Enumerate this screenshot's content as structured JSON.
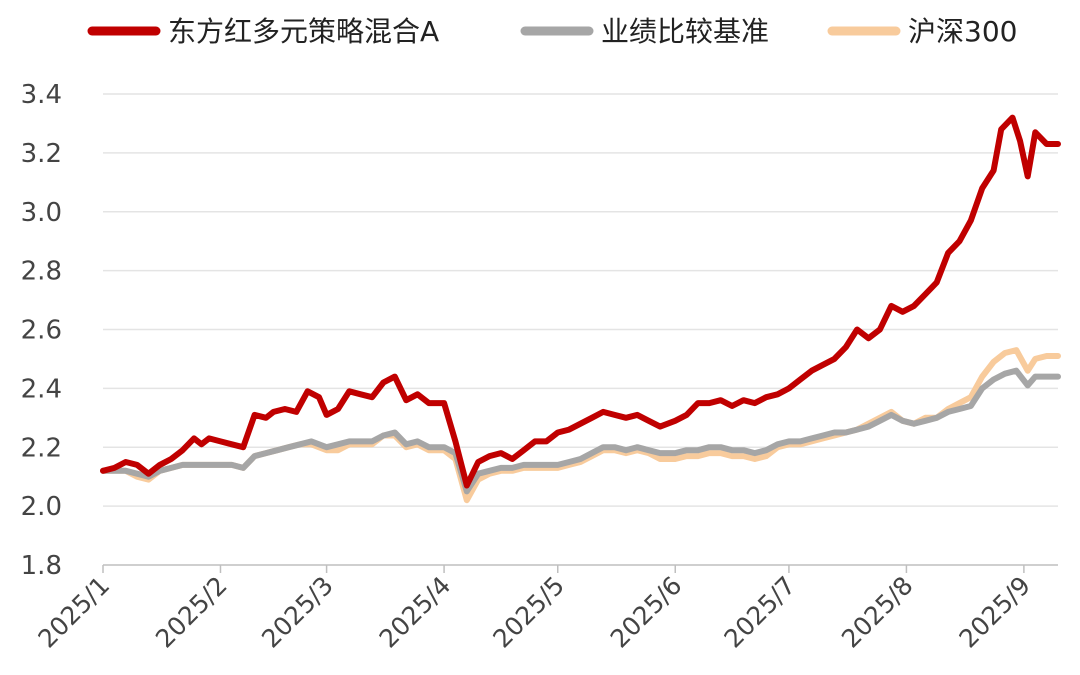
{
  "chart_data": {
    "type": "line",
    "title": "",
    "xlabel": "",
    "ylabel": "",
    "ylim": [
      1.8,
      3.4
    ],
    "yticks": [
      1.8,
      2.0,
      2.2,
      2.4,
      2.6,
      2.8,
      3.0,
      3.2,
      3.4
    ],
    "ytick_labels": [
      "1.8",
      "2.0",
      "2.2",
      "2.4",
      "2.6",
      "2.8",
      "3.0",
      "3.2",
      "3.4"
    ],
    "xlim": [
      "2025-01-01",
      "2025-09-10"
    ],
    "xticks": [
      "2025-01-01",
      "2025-02-01",
      "2025-03-01",
      "2025-04-01",
      "2025-05-01",
      "2025-06-01",
      "2025-07-01",
      "2025-08-01",
      "2025-09-01"
    ],
    "xtick_labels": [
      "2025/1",
      "2025/2",
      "2025/3",
      "2025/4",
      "2025/5",
      "2025/6",
      "2025/7",
      "2025/8",
      "2025/9"
    ],
    "grid": "horizontal",
    "legend_position": "top",
    "series": [
      {
        "name": "东方红多元策略混合A",
        "color": "#c00000",
        "points": [
          [
            "2025-01-01",
            2.12
          ],
          [
            "2025-01-04",
            2.13
          ],
          [
            "2025-01-07",
            2.15
          ],
          [
            "2025-01-10",
            2.14
          ],
          [
            "2025-01-13",
            2.11
          ],
          [
            "2025-01-16",
            2.14
          ],
          [
            "2025-01-19",
            2.16
          ],
          [
            "2025-01-22",
            2.19
          ],
          [
            "2025-01-25",
            2.23
          ],
          [
            "2025-01-27",
            2.21
          ],
          [
            "2025-01-29",
            2.23
          ],
          [
            "2025-02-01",
            2.22
          ],
          [
            "2025-02-04",
            2.21
          ],
          [
            "2025-02-07",
            2.2
          ],
          [
            "2025-02-10",
            2.31
          ],
          [
            "2025-02-13",
            2.3
          ],
          [
            "2025-02-15",
            2.32
          ],
          [
            "2025-02-18",
            2.33
          ],
          [
            "2025-02-21",
            2.32
          ],
          [
            "2025-02-24",
            2.39
          ],
          [
            "2025-02-27",
            2.37
          ],
          [
            "2025-03-01",
            2.31
          ],
          [
            "2025-03-04",
            2.33
          ],
          [
            "2025-03-07",
            2.39
          ],
          [
            "2025-03-10",
            2.38
          ],
          [
            "2025-03-13",
            2.37
          ],
          [
            "2025-03-16",
            2.42
          ],
          [
            "2025-03-19",
            2.44
          ],
          [
            "2025-03-22",
            2.36
          ],
          [
            "2025-03-25",
            2.38
          ],
          [
            "2025-03-28",
            2.35
          ],
          [
            "2025-04-01",
            2.35
          ],
          [
            "2025-04-04",
            2.22
          ],
          [
            "2025-04-07",
            2.07
          ],
          [
            "2025-04-10",
            2.15
          ],
          [
            "2025-04-13",
            2.17
          ],
          [
            "2025-04-16",
            2.18
          ],
          [
            "2025-04-19",
            2.16
          ],
          [
            "2025-04-22",
            2.19
          ],
          [
            "2025-04-25",
            2.22
          ],
          [
            "2025-04-28",
            2.22
          ],
          [
            "2025-05-01",
            2.25
          ],
          [
            "2025-05-04",
            2.26
          ],
          [
            "2025-05-07",
            2.28
          ],
          [
            "2025-05-10",
            2.3
          ],
          [
            "2025-05-13",
            2.32
          ],
          [
            "2025-05-16",
            2.31
          ],
          [
            "2025-05-19",
            2.3
          ],
          [
            "2025-05-22",
            2.31
          ],
          [
            "2025-05-25",
            2.29
          ],
          [
            "2025-05-28",
            2.27
          ],
          [
            "2025-06-01",
            2.29
          ],
          [
            "2025-06-04",
            2.31
          ],
          [
            "2025-06-07",
            2.35
          ],
          [
            "2025-06-10",
            2.35
          ],
          [
            "2025-06-13",
            2.36
          ],
          [
            "2025-06-16",
            2.34
          ],
          [
            "2025-06-19",
            2.36
          ],
          [
            "2025-06-22",
            2.35
          ],
          [
            "2025-06-25",
            2.37
          ],
          [
            "2025-06-28",
            2.38
          ],
          [
            "2025-07-01",
            2.4
          ],
          [
            "2025-07-04",
            2.43
          ],
          [
            "2025-07-07",
            2.46
          ],
          [
            "2025-07-10",
            2.48
          ],
          [
            "2025-07-13",
            2.5
          ],
          [
            "2025-07-16",
            2.54
          ],
          [
            "2025-07-19",
            2.6
          ],
          [
            "2025-07-22",
            2.57
          ],
          [
            "2025-07-25",
            2.6
          ],
          [
            "2025-07-28",
            2.68
          ],
          [
            "2025-07-31",
            2.66
          ],
          [
            "2025-08-03",
            2.68
          ],
          [
            "2025-08-06",
            2.72
          ],
          [
            "2025-08-09",
            2.76
          ],
          [
            "2025-08-12",
            2.86
          ],
          [
            "2025-08-15",
            2.9
          ],
          [
            "2025-08-18",
            2.97
          ],
          [
            "2025-08-21",
            3.08
          ],
          [
            "2025-08-24",
            3.14
          ],
          [
            "2025-08-26",
            3.28
          ],
          [
            "2025-08-29",
            3.32
          ],
          [
            "2025-08-31",
            3.24
          ],
          [
            "2025-09-02",
            3.12
          ],
          [
            "2025-09-04",
            3.27
          ],
          [
            "2025-09-07",
            3.23
          ],
          [
            "2025-09-10",
            3.23
          ]
        ]
      },
      {
        "name": "业绩比较基准",
        "color": "#a6a6a6",
        "points": [
          [
            "2025-01-01",
            2.12
          ],
          [
            "2025-01-04",
            2.12
          ],
          [
            "2025-01-07",
            2.12
          ],
          [
            "2025-01-10",
            2.11
          ],
          [
            "2025-01-13",
            2.1
          ],
          [
            "2025-01-16",
            2.12
          ],
          [
            "2025-01-19",
            2.13
          ],
          [
            "2025-01-22",
            2.14
          ],
          [
            "2025-01-25",
            2.14
          ],
          [
            "2025-01-28",
            2.14
          ],
          [
            "2025-02-01",
            2.14
          ],
          [
            "2025-02-04",
            2.14
          ],
          [
            "2025-02-07",
            2.13
          ],
          [
            "2025-02-10",
            2.17
          ],
          [
            "2025-02-13",
            2.18
          ],
          [
            "2025-02-16",
            2.19
          ],
          [
            "2025-02-19",
            2.2
          ],
          [
            "2025-02-22",
            2.21
          ],
          [
            "2025-02-25",
            2.22
          ],
          [
            "2025-03-01",
            2.2
          ],
          [
            "2025-03-04",
            2.21
          ],
          [
            "2025-03-07",
            2.22
          ],
          [
            "2025-03-10",
            2.22
          ],
          [
            "2025-03-13",
            2.22
          ],
          [
            "2025-03-16",
            2.24
          ],
          [
            "2025-03-19",
            2.25
          ],
          [
            "2025-03-22",
            2.21
          ],
          [
            "2025-03-25",
            2.22
          ],
          [
            "2025-03-28",
            2.2
          ],
          [
            "2025-04-01",
            2.2
          ],
          [
            "2025-04-04",
            2.18
          ],
          [
            "2025-04-07",
            2.05
          ],
          [
            "2025-04-10",
            2.11
          ],
          [
            "2025-04-13",
            2.12
          ],
          [
            "2025-04-16",
            2.13
          ],
          [
            "2025-04-19",
            2.13
          ],
          [
            "2025-04-22",
            2.14
          ],
          [
            "2025-04-25",
            2.14
          ],
          [
            "2025-04-28",
            2.14
          ],
          [
            "2025-05-01",
            2.14
          ],
          [
            "2025-05-04",
            2.15
          ],
          [
            "2025-05-07",
            2.16
          ],
          [
            "2025-05-10",
            2.18
          ],
          [
            "2025-05-13",
            2.2
          ],
          [
            "2025-05-16",
            2.2
          ],
          [
            "2025-05-19",
            2.19
          ],
          [
            "2025-05-22",
            2.2
          ],
          [
            "2025-05-25",
            2.19
          ],
          [
            "2025-05-28",
            2.18
          ],
          [
            "2025-06-01",
            2.18
          ],
          [
            "2025-06-04",
            2.19
          ],
          [
            "2025-06-07",
            2.19
          ],
          [
            "2025-06-10",
            2.2
          ],
          [
            "2025-06-13",
            2.2
          ],
          [
            "2025-06-16",
            2.19
          ],
          [
            "2025-06-19",
            2.19
          ],
          [
            "2025-06-22",
            2.18
          ],
          [
            "2025-06-25",
            2.19
          ],
          [
            "2025-06-28",
            2.21
          ],
          [
            "2025-07-01",
            2.22
          ],
          [
            "2025-07-04",
            2.22
          ],
          [
            "2025-07-07",
            2.23
          ],
          [
            "2025-07-10",
            2.24
          ],
          [
            "2025-07-13",
            2.25
          ],
          [
            "2025-07-16",
            2.25
          ],
          [
            "2025-07-19",
            2.26
          ],
          [
            "2025-07-22",
            2.27
          ],
          [
            "2025-07-25",
            2.29
          ],
          [
            "2025-07-28",
            2.31
          ],
          [
            "2025-07-31",
            2.29
          ],
          [
            "2025-08-03",
            2.28
          ],
          [
            "2025-08-06",
            2.29
          ],
          [
            "2025-08-09",
            2.3
          ],
          [
            "2025-08-12",
            2.32
          ],
          [
            "2025-08-15",
            2.33
          ],
          [
            "2025-08-18",
            2.34
          ],
          [
            "2025-08-21",
            2.4
          ],
          [
            "2025-08-24",
            2.43
          ],
          [
            "2025-08-27",
            2.45
          ],
          [
            "2025-08-30",
            2.46
          ],
          [
            "2025-09-02",
            2.41
          ],
          [
            "2025-09-04",
            2.44
          ],
          [
            "2025-09-07",
            2.44
          ],
          [
            "2025-09-10",
            2.44
          ]
        ]
      },
      {
        "name": "沪深300",
        "color": "#f8cb9c",
        "points": [
          [
            "2025-01-01",
            2.12
          ],
          [
            "2025-01-04",
            2.12
          ],
          [
            "2025-01-07",
            2.12
          ],
          [
            "2025-01-10",
            2.1
          ],
          [
            "2025-01-13",
            2.09
          ],
          [
            "2025-01-16",
            2.12
          ],
          [
            "2025-01-19",
            2.13
          ],
          [
            "2025-01-22",
            2.14
          ],
          [
            "2025-01-25",
            2.14
          ],
          [
            "2025-01-28",
            2.14
          ],
          [
            "2025-02-01",
            2.14
          ],
          [
            "2025-02-04",
            2.14
          ],
          [
            "2025-02-07",
            2.13
          ],
          [
            "2025-02-10",
            2.17
          ],
          [
            "2025-02-13",
            2.18
          ],
          [
            "2025-02-16",
            2.19
          ],
          [
            "2025-02-19",
            2.2
          ],
          [
            "2025-02-22",
            2.21
          ],
          [
            "2025-02-25",
            2.21
          ],
          [
            "2025-03-01",
            2.19
          ],
          [
            "2025-03-04",
            2.19
          ],
          [
            "2025-03-07",
            2.21
          ],
          [
            "2025-03-10",
            2.21
          ],
          [
            "2025-03-13",
            2.21
          ],
          [
            "2025-03-16",
            2.24
          ],
          [
            "2025-03-19",
            2.24
          ],
          [
            "2025-03-22",
            2.2
          ],
          [
            "2025-03-25",
            2.21
          ],
          [
            "2025-03-28",
            2.19
          ],
          [
            "2025-04-01",
            2.19
          ],
          [
            "2025-04-04",
            2.16
          ],
          [
            "2025-04-07",
            2.02
          ],
          [
            "2025-04-10",
            2.09
          ],
          [
            "2025-04-13",
            2.11
          ],
          [
            "2025-04-16",
            2.12
          ],
          [
            "2025-04-19",
            2.12
          ],
          [
            "2025-04-22",
            2.13
          ],
          [
            "2025-04-25",
            2.13
          ],
          [
            "2025-04-28",
            2.13
          ],
          [
            "2025-05-01",
            2.13
          ],
          [
            "2025-05-04",
            2.14
          ],
          [
            "2025-05-07",
            2.15
          ],
          [
            "2025-05-10",
            2.17
          ],
          [
            "2025-05-13",
            2.19
          ],
          [
            "2025-05-16",
            2.19
          ],
          [
            "2025-05-19",
            2.18
          ],
          [
            "2025-05-22",
            2.19
          ],
          [
            "2025-05-25",
            2.18
          ],
          [
            "2025-05-28",
            2.16
          ],
          [
            "2025-06-01",
            2.16
          ],
          [
            "2025-06-04",
            2.17
          ],
          [
            "2025-06-07",
            2.17
          ],
          [
            "2025-06-10",
            2.18
          ],
          [
            "2025-06-13",
            2.18
          ],
          [
            "2025-06-16",
            2.17
          ],
          [
            "2025-06-19",
            2.17
          ],
          [
            "2025-06-22",
            2.16
          ],
          [
            "2025-06-25",
            2.17
          ],
          [
            "2025-06-28",
            2.2
          ],
          [
            "2025-07-01",
            2.21
          ],
          [
            "2025-07-04",
            2.21
          ],
          [
            "2025-07-07",
            2.22
          ],
          [
            "2025-07-10",
            2.23
          ],
          [
            "2025-07-13",
            2.24
          ],
          [
            "2025-07-16",
            2.25
          ],
          [
            "2025-07-19",
            2.26
          ],
          [
            "2025-07-22",
            2.28
          ],
          [
            "2025-07-25",
            2.3
          ],
          [
            "2025-07-28",
            2.32
          ],
          [
            "2025-07-31",
            2.29
          ],
          [
            "2025-08-03",
            2.28
          ],
          [
            "2025-08-06",
            2.3
          ],
          [
            "2025-08-09",
            2.3
          ],
          [
            "2025-08-12",
            2.33
          ],
          [
            "2025-08-15",
            2.35
          ],
          [
            "2025-08-18",
            2.37
          ],
          [
            "2025-08-21",
            2.44
          ],
          [
            "2025-08-24",
            2.49
          ],
          [
            "2025-08-27",
            2.52
          ],
          [
            "2025-08-30",
            2.53
          ],
          [
            "2025-09-02",
            2.46
          ],
          [
            "2025-09-04",
            2.5
          ],
          [
            "2025-09-07",
            2.51
          ],
          [
            "2025-09-10",
            2.51
          ]
        ]
      }
    ]
  }
}
